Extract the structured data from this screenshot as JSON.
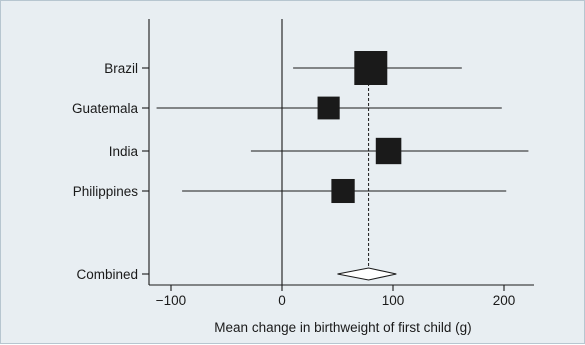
{
  "chart_data": {
    "type": "forest",
    "title": "",
    "xlabel": "Mean change in birthweight of first child (g)",
    "ylabel": "",
    "xlim": [
      -120,
      230
    ],
    "xticks": [
      -100,
      0,
      100,
      200
    ],
    "xtick_labels": [
      "−100",
      "0",
      "100",
      "200"
    ],
    "studies": [
      {
        "name": "Brazil",
        "estimate": 80,
        "ci_lower": 10,
        "ci_upper": 162,
        "weight": 1.0
      },
      {
        "name": "Guatemala",
        "estimate": 42,
        "ci_lower": -113,
        "ci_upper": 198,
        "weight": 0.45
      },
      {
        "name": "India",
        "estimate": 96,
        "ci_lower": -28,
        "ci_upper": 222,
        "weight": 0.6
      },
      {
        "name": "Philippines",
        "estimate": 55,
        "ci_lower": -90,
        "ci_upper": 202,
        "weight": 0.5
      }
    ],
    "combined": {
      "name": "Combined",
      "estimate": 78,
      "ci_lower": 50,
      "ci_upper": 103
    },
    "reference_line": 0,
    "grid": false,
    "background": "#e8eef2"
  }
}
